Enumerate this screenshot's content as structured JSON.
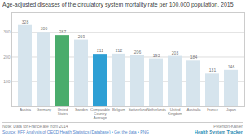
{
  "chart_data": {
    "type": "bar",
    "title": "Age-adjusted diseases of the circulatory system mortality rate per 100,000 population, 2015",
    "categories": [
      "Austria",
      "Germany",
      "United\nStates",
      "Sweden",
      "Comparable\nCountry\nAverage",
      "Belgium",
      "Switzerland",
      "Netherlands",
      "United\nKingdom",
      "Australia",
      "France",
      "Japan"
    ],
    "values": [
      328,
      300,
      287,
      269,
      211,
      212,
      206,
      193,
      203,
      184,
      131,
      146
    ],
    "colors": [
      "#d6e4ed",
      "#d6e4ed",
      "#4aac6c",
      "#d6e4ed",
      "#2e9fd4",
      "#d6e4ed",
      "#d6e4ed",
      "#d6e4ed",
      "#d6e4ed",
      "#d6e4ed",
      "#d6e4ed",
      "#d6e4ed"
    ],
    "data_labels": true,
    "ylim": [
      0,
      380
    ],
    "yticks": [
      100,
      200,
      300
    ],
    "grid": true,
    "footer": "Note: Data for France are from 2014",
    "source": "Source: KFF Analysis of OECD Health Statistics (Database) • Get the data • PNG",
    "annotations": [
      "Peterson-Kaiser",
      "Health System Tracker"
    ]
  }
}
